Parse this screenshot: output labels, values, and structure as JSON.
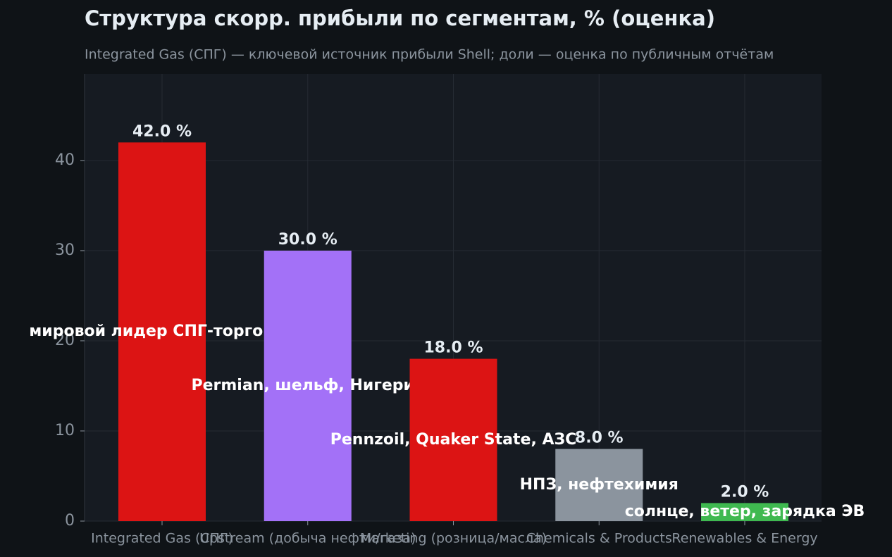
{
  "chart_data": {
    "type": "bar",
    "title": "Структура скорр. прибыли по сегментам, % (оценка)",
    "subtitle": "Integrated Gas (СПГ) — ключевой источник прибыли Shell; доли — оценка по публичным отчётам",
    "categories": [
      "Integrated Gas (СПГ)",
      "Upstream (добыча нефти/газа)",
      "Marketing (розница/масла)",
      "Chemicals & Products",
      "Renewables & Energy"
    ],
    "values": [
      42.0,
      30.0,
      18.0,
      8.0,
      2.0
    ],
    "value_labels": [
      "42.0 %",
      "30.0 %",
      "18.0 %",
      "8.0 %",
      "2.0 %"
    ],
    "colors": [
      "#dc1414",
      "#a371f7",
      "#dc1414",
      "#8b949e",
      "#3fb950"
    ],
    "annotations": [
      "мировой лидер СПГ-торговли",
      "Permian, шельф, Нигерия",
      "Pennzoil, Quaker State, АЗС",
      "НПЗ, нефтехимия",
      "солнце, ветер, зарядка ЭВ"
    ],
    "ylim": [
      0,
      49.6
    ],
    "yticks": [
      0,
      10,
      20,
      30,
      40
    ],
    "grid": true
  }
}
